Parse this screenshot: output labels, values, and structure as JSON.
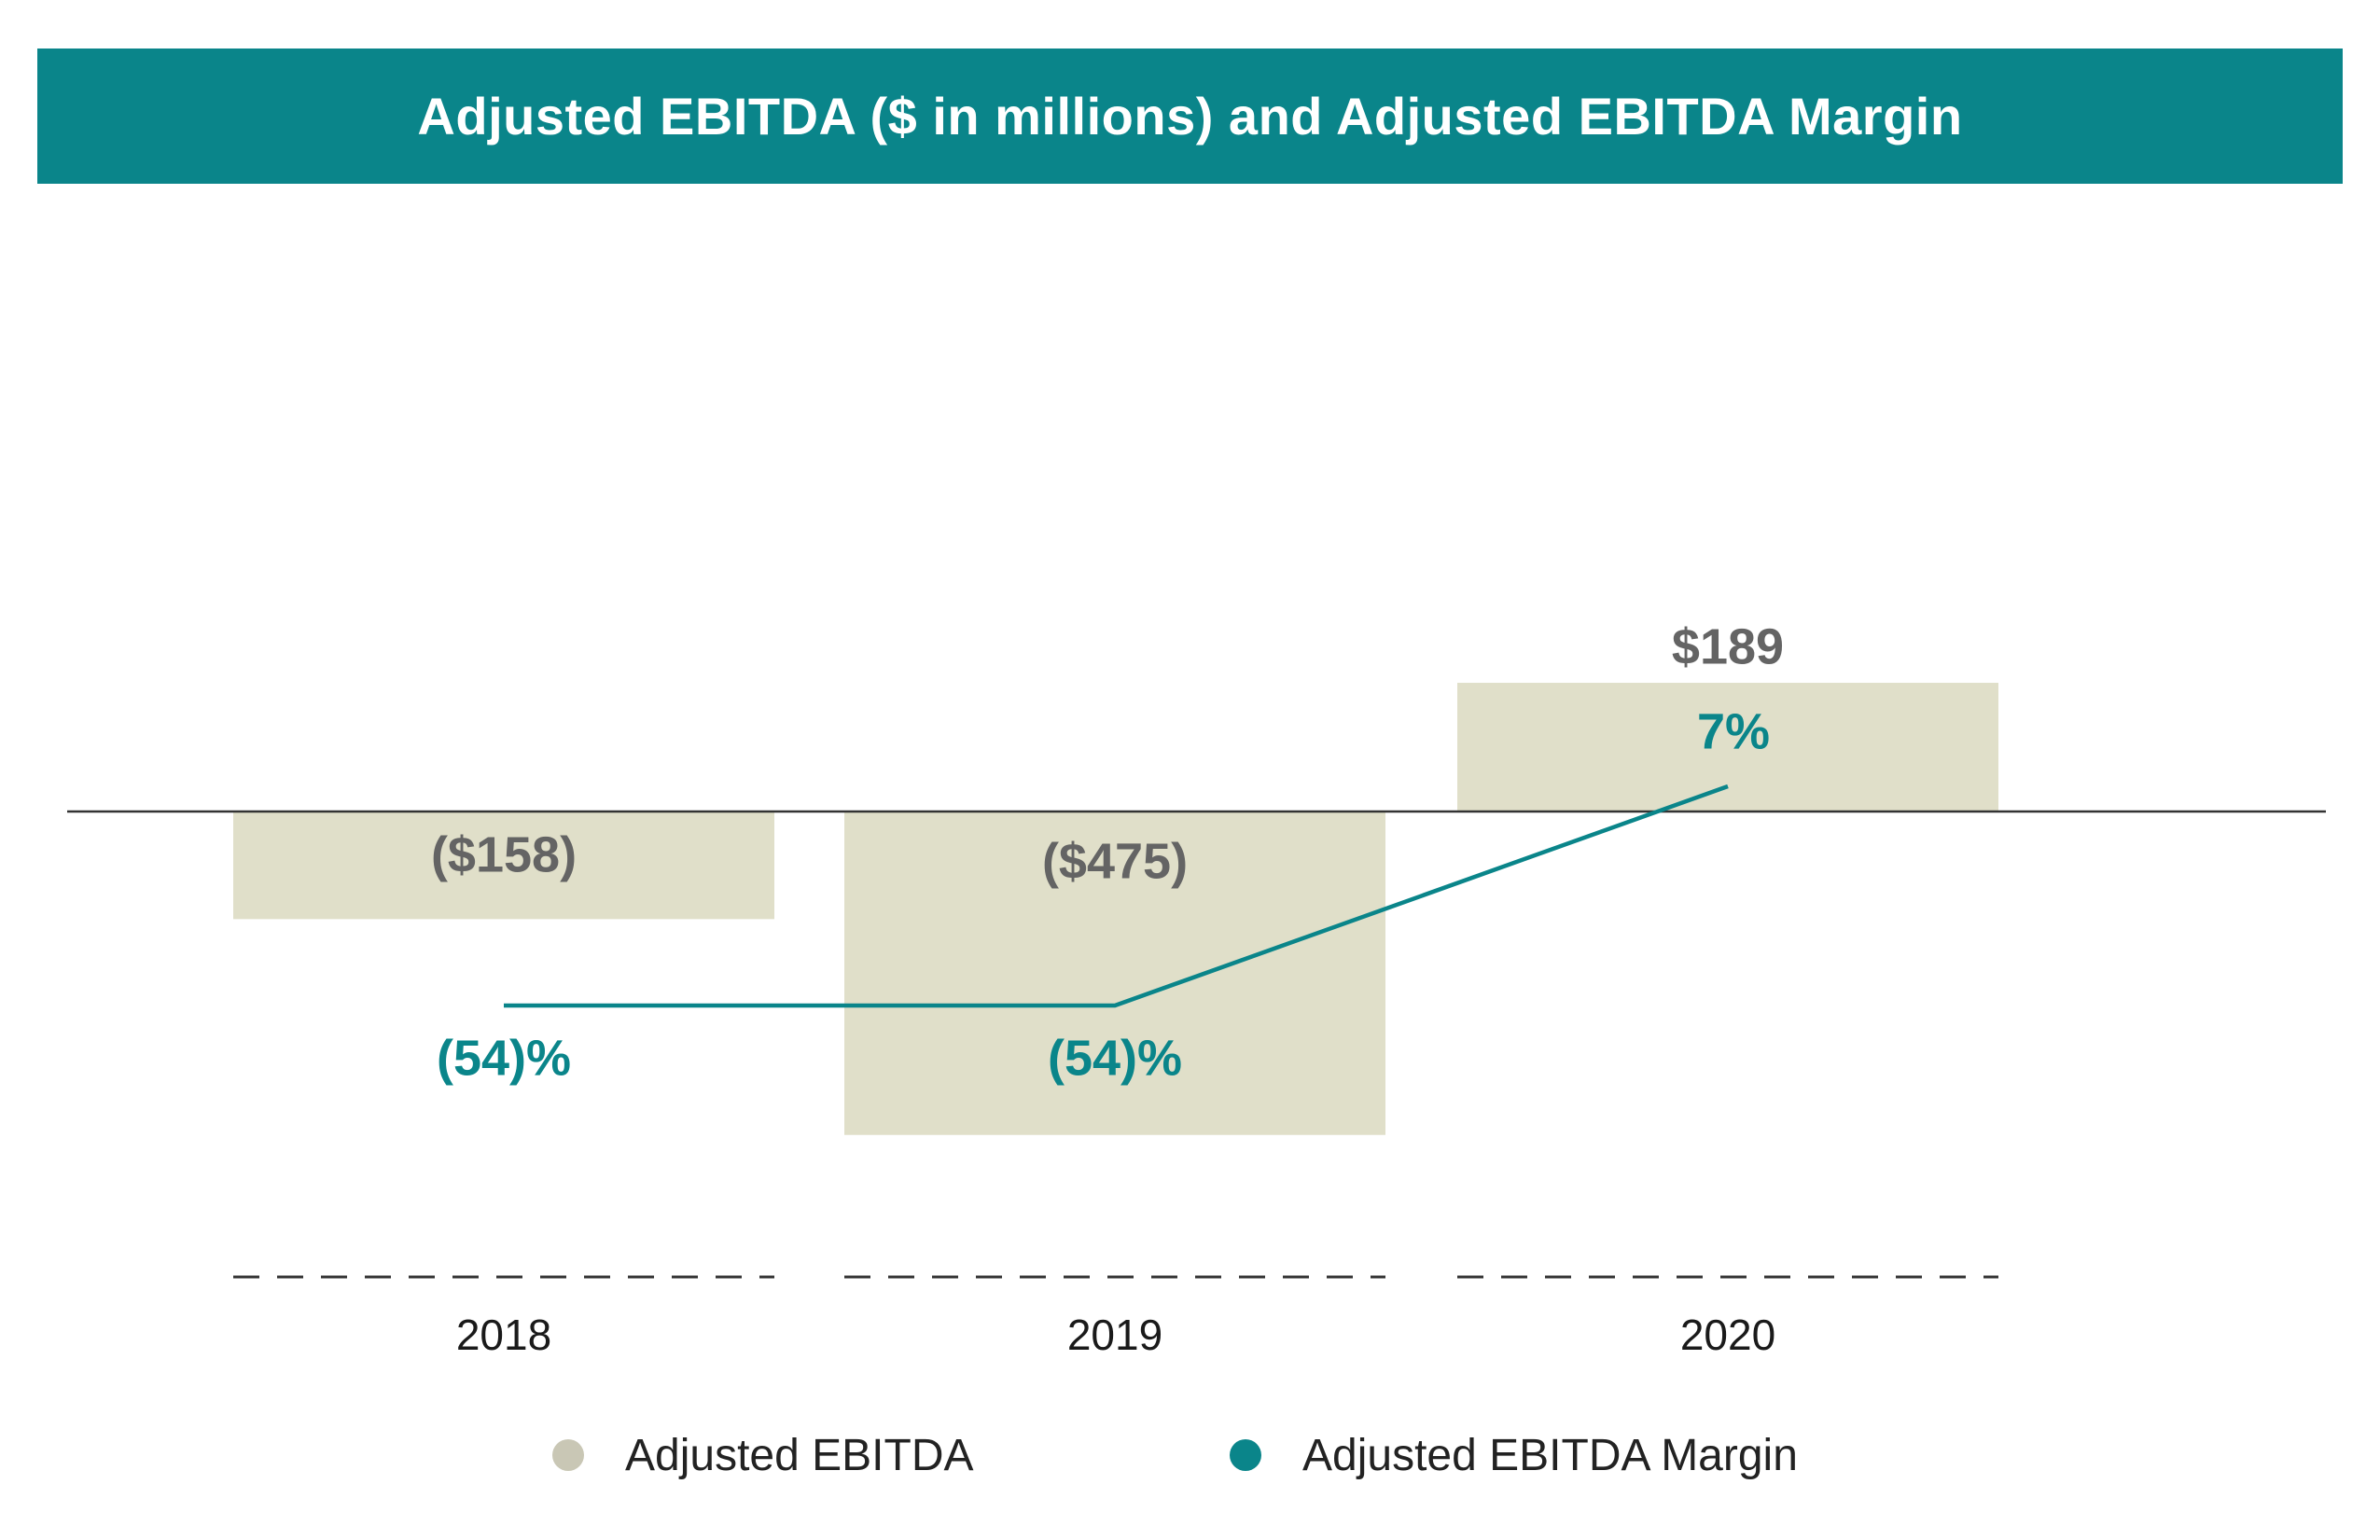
{
  "header": {
    "title": "Adjusted EBITDA ($ in millions) and Adjusted EBITDA Margin"
  },
  "colors": {
    "header_bg": "#0a858a",
    "bar": "#e0dfc9",
    "line": "#0a858a",
    "value_label": "#646464",
    "margin_label": "#0a858a",
    "legend_bar_dot": "#c9c7b5",
    "legend_line_dot": "#0a858a"
  },
  "chart_data": {
    "type": "bar",
    "title": "Adjusted EBITDA ($ in millions) and Adjusted EBITDA Margin",
    "categories": [
      "2018",
      "2019",
      "2020"
    ],
    "series": [
      {
        "name": "Adjusted EBITDA",
        "kind": "bar",
        "values": [
          -158,
          -475,
          189
        ],
        "labels": [
          "($158)",
          "($475)",
          "$189"
        ]
      },
      {
        "name": "Adjusted EBITDA Margin",
        "kind": "line",
        "values": [
          -54,
          -54,
          7
        ],
        "labels": [
          "(54)%",
          "(54)%",
          "7%"
        ]
      }
    ],
    "xlabel": "",
    "ylabel": "",
    "grid": false,
    "legend": "bottom"
  },
  "legend": {
    "items": [
      {
        "label": "Adjusted EBITDA",
        "color": "#c9c7b5"
      },
      {
        "label": "Adjusted EBITDA Margin",
        "color": "#0a858a"
      }
    ]
  }
}
